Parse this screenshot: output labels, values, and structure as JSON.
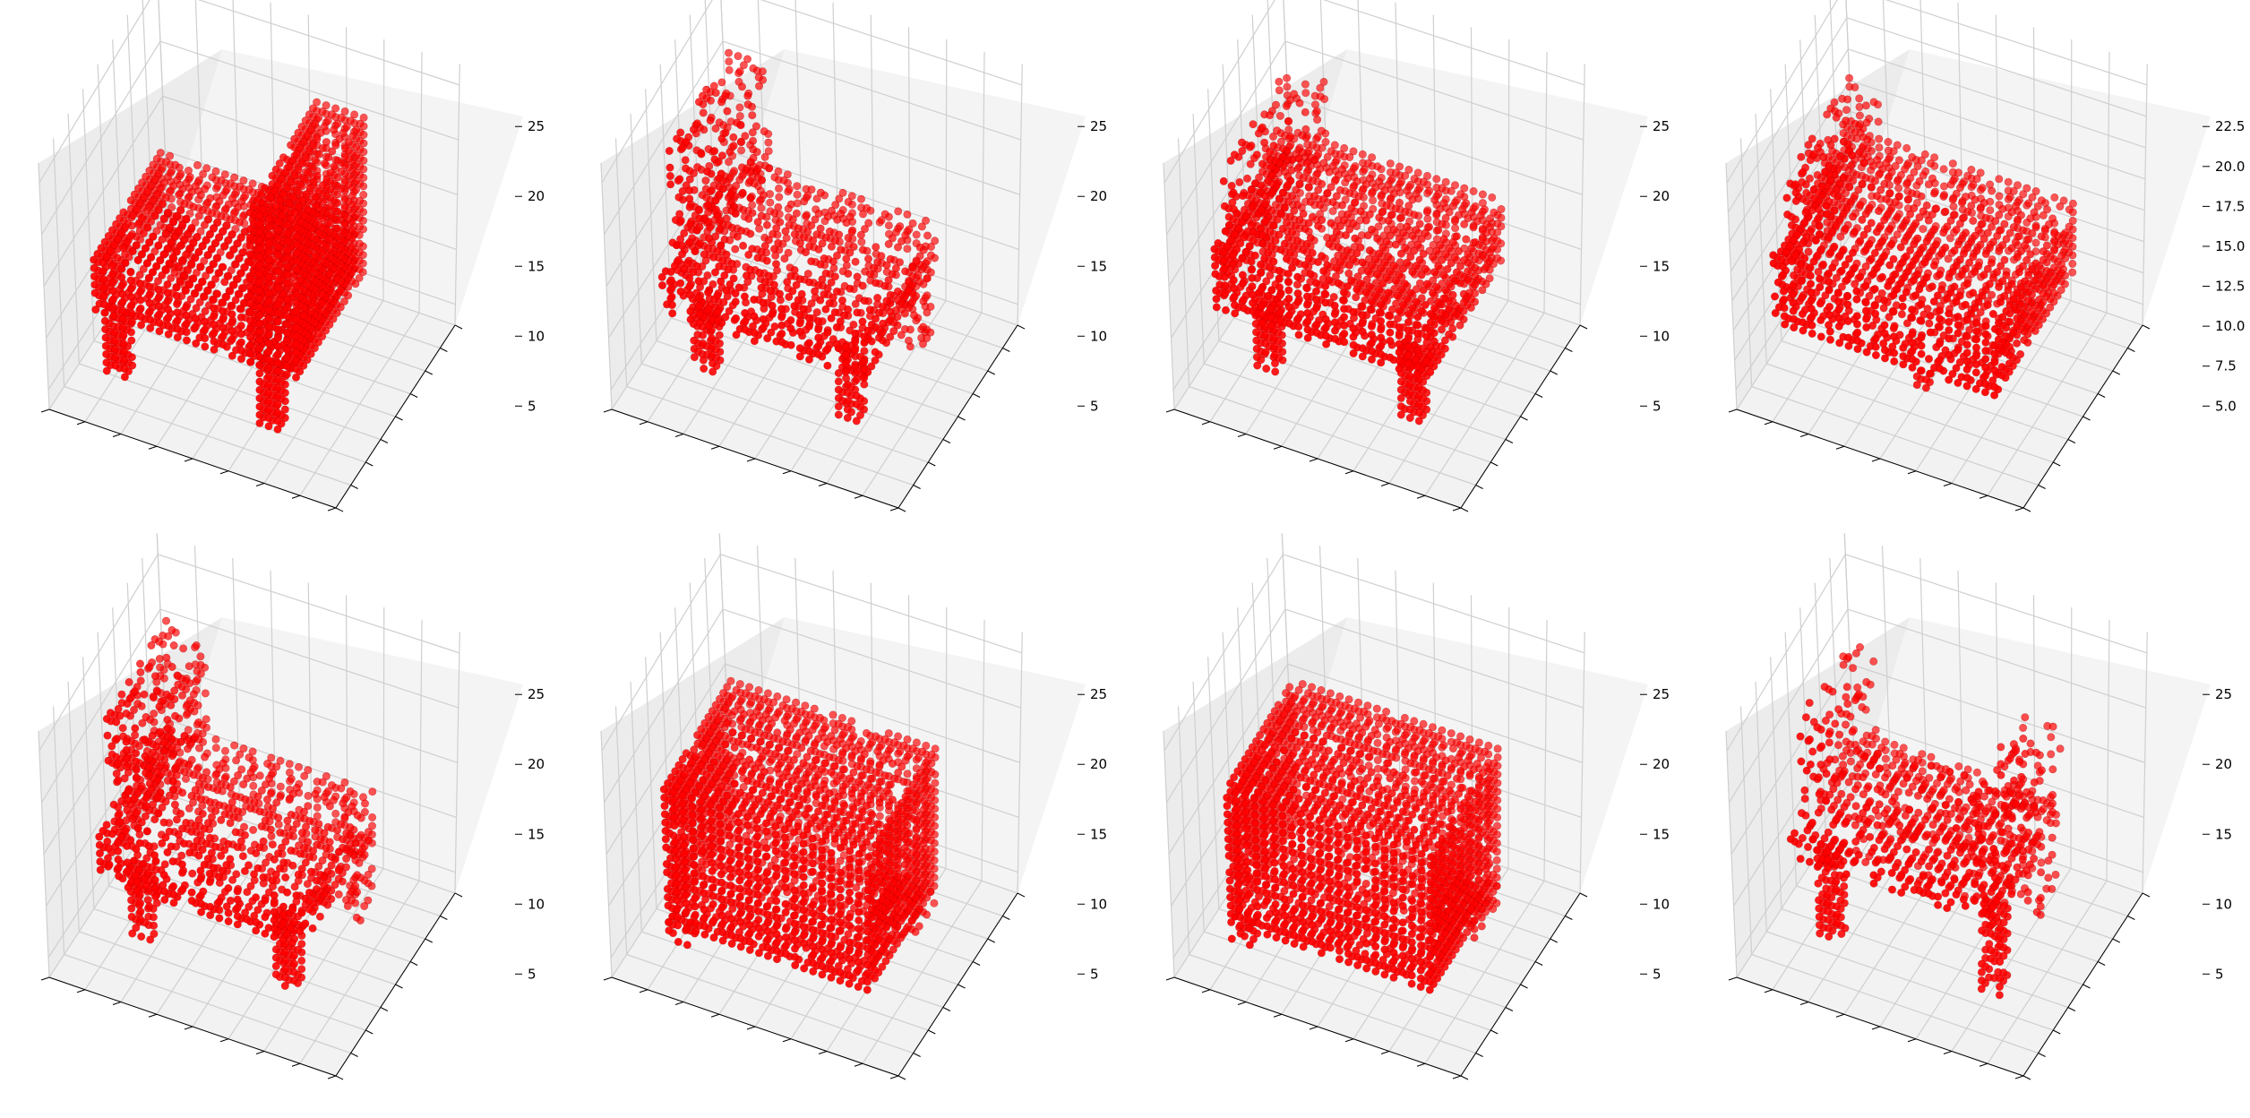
{
  "figure": {
    "background": "#ffffff",
    "marker_color": "#ff0000",
    "pane_color": "#f2f2f2",
    "grid_color": "#cfcfcf"
  },
  "chart_data": [
    {
      "type": "scatter",
      "subtype": "3d-voxel",
      "shape": "chair-high-back",
      "zlim": [
        2,
        28
      ],
      "zticks": [
        "5",
        "10",
        "15",
        "20",
        "25"
      ],
      "grid": true,
      "marker_color": "#ff0000"
    },
    {
      "type": "scatter",
      "subtype": "3d-voxel",
      "shape": "chair-open-back",
      "zlim": [
        2,
        28
      ],
      "zticks": [
        "5",
        "10",
        "15",
        "20",
        "25"
      ],
      "grid": true,
      "marker_color": "#ff0000"
    },
    {
      "type": "scatter",
      "subtype": "3d-voxel",
      "shape": "chair-low-back",
      "zlim": [
        2,
        28
      ],
      "zticks": [
        "5",
        "10",
        "15",
        "20",
        "25"
      ],
      "grid": true,
      "marker_color": "#ff0000"
    },
    {
      "type": "scatter",
      "subtype": "3d-voxel",
      "shape": "chair-no-legs",
      "zlim": [
        3.5,
        23.5
      ],
      "zticks": [
        "5.0",
        "7.5",
        "10.0",
        "12.5",
        "15.0",
        "17.5",
        "20.0",
        "22.5"
      ],
      "grid": true,
      "marker_color": "#ff0000"
    },
    {
      "type": "scatter",
      "subtype": "3d-voxel",
      "shape": "chair-open-back",
      "zlim": [
        2,
        28
      ],
      "zticks": [
        "5",
        "10",
        "15",
        "20",
        "25"
      ],
      "grid": true,
      "marker_color": "#ff0000"
    },
    {
      "type": "scatter",
      "subtype": "3d-voxel",
      "shape": "sofa-block",
      "zlim": [
        2,
        28
      ],
      "zticks": [
        "5",
        "10",
        "15",
        "20",
        "25"
      ],
      "grid": true,
      "marker_color": "#ff0000"
    },
    {
      "type": "scatter",
      "subtype": "3d-voxel",
      "shape": "sofa-block",
      "zlim": [
        2,
        28
      ],
      "zticks": [
        "5",
        "10",
        "15",
        "20",
        "25"
      ],
      "grid": true,
      "marker_color": "#ff0000"
    },
    {
      "type": "scatter",
      "subtype": "3d-voxel",
      "shape": "chair-frame",
      "zlim": [
        2,
        28
      ],
      "zticks": [
        "5",
        "10",
        "15",
        "20",
        "25"
      ],
      "grid": true,
      "marker_color": "#ff0000"
    }
  ]
}
